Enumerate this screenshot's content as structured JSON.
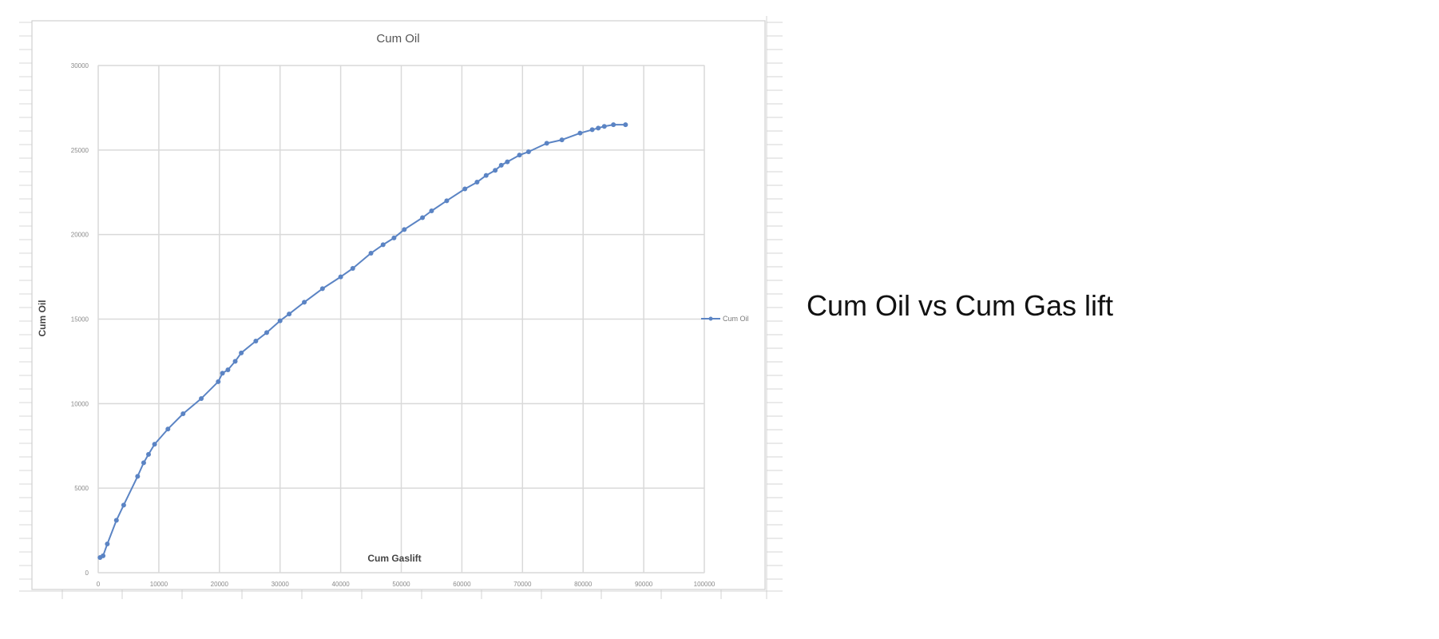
{
  "caption": "Cum Oil vs Cum Gas lift",
  "colors": {
    "series": "#5b84c4",
    "gridline": "#d9d9d9",
    "chart_border": "#d0d0d0",
    "sheet_grid": "#c8c8c8"
  },
  "chart_data": {
    "type": "line",
    "title": "Cum Oil",
    "xlabel": "Cum Gaslift",
    "ylabel": "Cum Oil",
    "xlim": [
      0,
      100000
    ],
    "ylim": [
      0,
      30000
    ],
    "xticks": [
      "0",
      "10000",
      "20000",
      "30000",
      "40000",
      "50000",
      "60000",
      "70000",
      "80000",
      "90000",
      "100000"
    ],
    "yticks": [
      "0",
      "5000",
      "10000",
      "15000",
      "20000",
      "25000",
      "30000"
    ],
    "grid": true,
    "legend": "right",
    "markers": true,
    "series": [
      {
        "name": "Cum Oil",
        "x": [
          300,
          800,
          1500,
          3000,
          4200,
          6500,
          7500,
          8300,
          9300,
          11500,
          14000,
          17000,
          19800,
          20500,
          21400,
          22600,
          23600,
          26000,
          27800,
          30000,
          31500,
          34000,
          37000,
          40000,
          42000,
          45000,
          47000,
          48800,
          50500,
          53500,
          55000,
          57500,
          60500,
          62500,
          64000,
          65500,
          66500,
          67500,
          69500,
          71000,
          74000,
          76500,
          79500,
          81500,
          82500,
          83500,
          85000,
          87000
        ],
        "y": [
          900,
          1000,
          1700,
          3100,
          4000,
          5700,
          6500,
          7000,
          7600,
          8500,
          9400,
          10300,
          11300,
          11800,
          12000,
          12500,
          13000,
          13700,
          14200,
          14900,
          15300,
          16000,
          16800,
          17500,
          18000,
          18900,
          19400,
          19800,
          20300,
          21000,
          21400,
          22000,
          22700,
          23100,
          23500,
          23800,
          24100,
          24300,
          24700,
          24900,
          25400,
          25600,
          26000,
          26200,
          26300,
          26400,
          26500,
          26500
        ]
      }
    ]
  }
}
